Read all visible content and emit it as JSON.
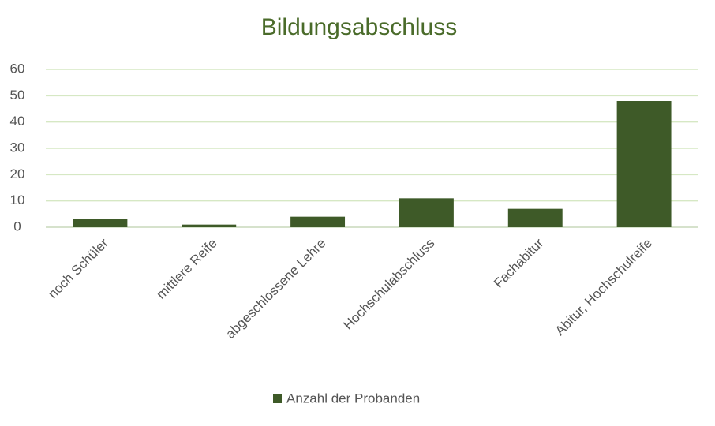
{
  "chart_data": {
    "type": "bar",
    "title": "Bildungsabschluss",
    "categories": [
      "noch Schüler",
      "mittlere Reife",
      "abgeschlossene Lehre",
      "Hochschulabschluss",
      "Fachabitur",
      "Abitur, Hochschulreife"
    ],
    "series": [
      {
        "name": "Anzahl der Probanden",
        "color": "#3e5a28",
        "values": [
          3,
          1,
          4,
          11,
          7,
          48
        ]
      }
    ],
    "ylim": [
      0,
      60
    ],
    "yticks": [
      0,
      10,
      20,
      30,
      40,
      50,
      60
    ],
    "grid": true,
    "legend": "bottom"
  }
}
